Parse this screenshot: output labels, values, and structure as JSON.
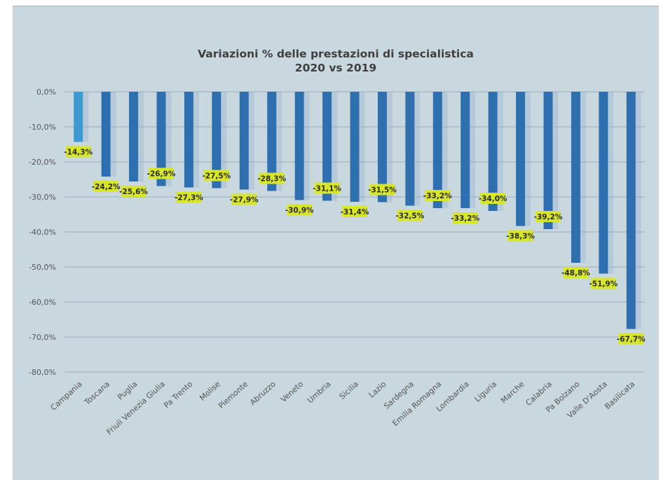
{
  "chart_data": {
    "type": "bar",
    "title": "Variazioni % delle prestazioni di specialistica",
    "subtitle": "2020 vs 2019",
    "xlabel": "",
    "ylabel": "",
    "ylim": [
      -80,
      0
    ],
    "yticks": [
      "0,0%",
      "-10,0%",
      "-20,0%",
      "-30,0%",
      "-40,0%",
      "-50,0%",
      "-60,0%",
      "-70,0%",
      "-80,0%"
    ],
    "grid": true,
    "categories": [
      "Campania",
      "Toscana",
      "Puglia",
      "Friuli Venezia Giulia",
      "Pa Trento",
      "Molise",
      "Piemonte",
      "Abruzzo",
      "Veneto",
      "Umbria",
      "Sicilia",
      "Lazio",
      "Sardegna",
      "Emilia Romagna",
      "Lombardia",
      "Liguria",
      "Marche",
      "Calabria",
      "Pa Bolzano",
      "Valle D'Aosta",
      "Basilicata"
    ],
    "values": [
      -14.3,
      -24.2,
      -25.6,
      -26.9,
      -27.3,
      -27.5,
      -27.9,
      -28.3,
      -30.9,
      -31.1,
      -31.4,
      -31.5,
      -32.5,
      -33.2,
      -33.2,
      -34.0,
      -38.3,
      -39.2,
      -48.8,
      -51.9,
      -67.7
    ],
    "value_labels": [
      "-14,3%",
      "-24,2%",
      "-25,6%",
      "-26,9%",
      "-27,3%",
      "-27,5%",
      "-27,9%",
      "-28,3%",
      "-30,9%",
      "-31,1%",
      "-31,4%",
      "-31,5%",
      "-32,5%",
      "-33,2%",
      "-33,2%",
      "-34,0%",
      "-38,3%",
      "-39,2%",
      "-48,8%",
      "-51,9%",
      "-67,7%"
    ],
    "colors": {
      "bar": "#2e6fb0",
      "highlight_bar": "#3d9ad1",
      "label_bg": "#d8e62a",
      "grid": "#8fa3b3"
    }
  }
}
